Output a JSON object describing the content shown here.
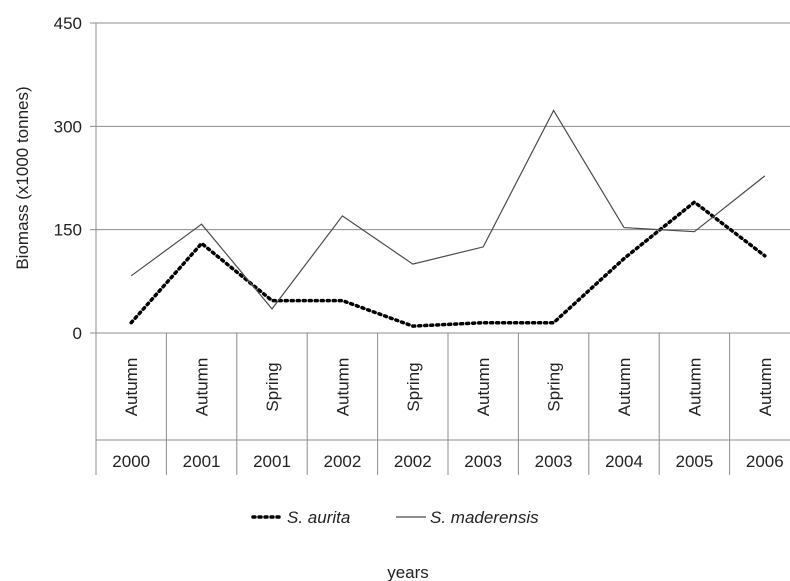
{
  "chart_data": {
    "type": "line",
    "ylabel": "Biomass (x1000 tonnes)",
    "xlabel": "years",
    "ylim": [
      0,
      450
    ],
    "yticks": [
      0,
      150,
      300,
      450
    ],
    "grid": "horizontal",
    "legend_position": "bottom",
    "categories": [
      {
        "season": "Autumn",
        "year": "2000"
      },
      {
        "season": "Autumn",
        "year": "2001"
      },
      {
        "season": "Spring",
        "year": "2001"
      },
      {
        "season": "Autumn",
        "year": "2002"
      },
      {
        "season": "Spring",
        "year": "2002"
      },
      {
        "season": "Autumn",
        "year": "2003"
      },
      {
        "season": "Spring",
        "year": "2003"
      },
      {
        "season": "Autumn",
        "year": "2004"
      },
      {
        "season": "Autumn",
        "year": "2005"
      },
      {
        "season": "Autumn",
        "year": "2006"
      }
    ],
    "series": [
      {
        "name": "S. aurita",
        "style": "dotted",
        "color": "#000000",
        "values": [
          15,
          130,
          47,
          47,
          10,
          15,
          15,
          108,
          190,
          112
        ]
      },
      {
        "name": "S. maderensis",
        "style": "solid",
        "color": "#4a4a4a",
        "values": [
          83,
          158,
          35,
          170,
          100,
          125,
          323,
          153,
          147,
          228
        ]
      }
    ]
  }
}
